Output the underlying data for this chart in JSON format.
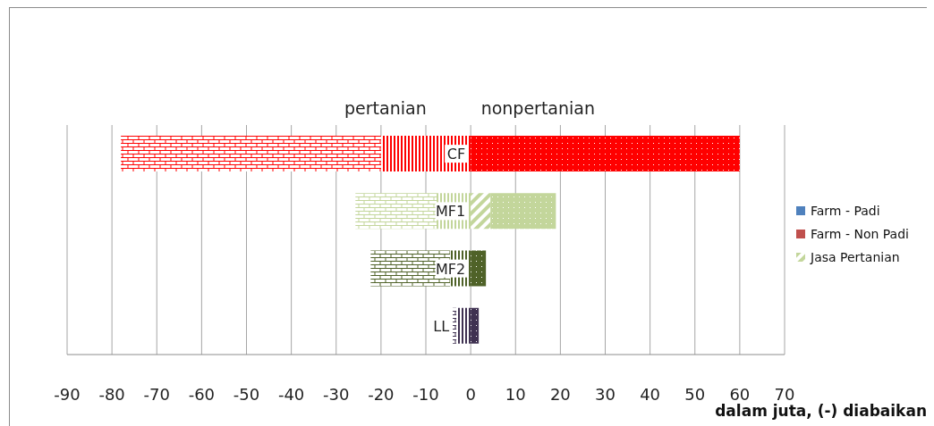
{
  "chart_data": {
    "type": "bar",
    "orientation": "horizontal",
    "stacked": true,
    "categories": [
      "CF",
      "MF1",
      "MF2",
      "LL"
    ],
    "series": [
      {
        "name": "Farm - Padi",
        "color": "#4f81bd",
        "values": [
          null,
          null,
          null,
          null
        ]
      },
      {
        "name": "Farm - Non Padi",
        "color": "#c0504d",
        "values": [
          null,
          null,
          null,
          null
        ]
      },
      {
        "colors": [
          "#ff0000",
          "#c3d69b",
          "#4f6228",
          "#3f3151"
        ],
        "values": [
          -20,
          -7.6,
          -4.6,
          -3.2
        ]
      },
      {
        "colors": [
          "#ff0000",
          "#c3d69b",
          "#4f6228",
          "#3f3151"
        ],
        "values": [
          -58,
          -18.1,
          -17.7,
          -0.8
        ]
      },
      {
        "name": "Jasa Pertanian",
        "color": "#c3d69b",
        "values": [
          null,
          4.4,
          null,
          null
        ]
      },
      {
        "colors": [
          "#ff0000",
          "#c3d69b",
          "#4f6228",
          "#3f3151"
        ],
        "values": [
          60,
          14.6,
          3.4,
          1.8
        ]
      }
    ],
    "xlim": [
      -90,
      70
    ],
    "xticks": [
      -90,
      -80,
      -70,
      -60,
      -50,
      -40,
      -30,
      -20,
      -10,
      0,
      10,
      20,
      30,
      40,
      50,
      60,
      70
    ],
    "xlabel": "dalam juta, (-) diabaikan",
    "annotations": [
      "pertanian",
      "nonpertanian"
    ],
    "grid": "x",
    "legend": "right"
  }
}
